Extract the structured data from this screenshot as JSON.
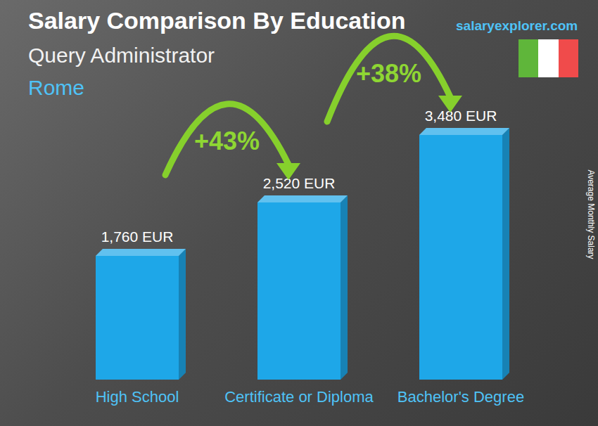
{
  "chart_data": {
    "type": "bar",
    "title": "Salary Comparison By Education",
    "subtitle": "Query Administrator",
    "location": "Rome",
    "source": "salaryexplorer.com",
    "ylabel": "Average Monthly Salary",
    "categories": [
      "High School",
      "Certificate or Diploma",
      "Bachelor's Degree"
    ],
    "values": [
      1760,
      2520,
      3480
    ],
    "value_labels": [
      "1,760 EUR",
      "2,520 EUR",
      "3,480 EUR"
    ],
    "data_labels": true,
    "color": "#1ea7e8",
    "ylim": [
      0,
      3800
    ],
    "tick_labels": false,
    "grid": false,
    "annotations": [
      {
        "from": "High School",
        "to": "Certificate or Diploma",
        "label": "+43%"
      },
      {
        "from": "Certificate or Diploma",
        "to": "Bachelor's Degree",
        "label": "+38%"
      }
    ]
  }
}
